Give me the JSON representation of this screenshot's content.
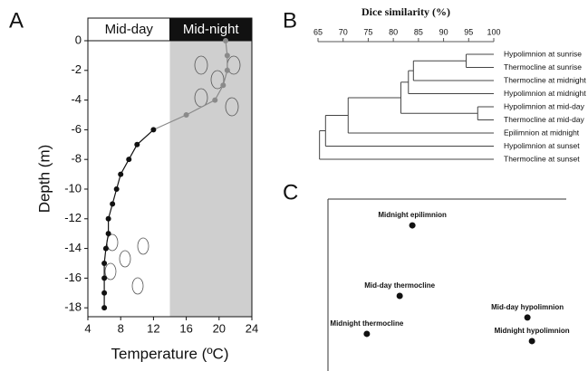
{
  "chart_data": [
    {
      "type": "line",
      "panel": "A",
      "header": [
        "Mid-day",
        "Mid-night"
      ],
      "shade_from": 14,
      "shade_color": "#cfcfcf",
      "xlabel": "Temperature (ºC)",
      "ylabel": "Depth (m)",
      "xlim": [
        4,
        24
      ],
      "xticks": [
        4,
        8,
        12,
        16,
        20,
        24
      ],
      "ylim": [
        -18.6,
        0
      ],
      "yticks": [
        0,
        -2,
        -4,
        -6,
        -8,
        -10,
        -12,
        -14,
        -16,
        -18
      ],
      "series": [
        {
          "color": "#111111",
          "x": [
            6,
            6,
            6,
            6,
            6.2,
            6.5,
            6.5,
            7,
            7.5,
            8,
            9,
            10,
            12
          ],
          "values": [
            -18,
            -17,
            -16,
            -15,
            -14,
            -13,
            -12,
            -11,
            -10,
            -9,
            -8,
            -7,
            -6
          ]
        },
        {
          "color": "#8a8a8a",
          "x": [
            16,
            19.5,
            20.5,
            21,
            21,
            20.8
          ],
          "values": [
            -5,
            -4,
            -3,
            -2,
            -1,
            0
          ]
        }
      ]
    },
    {
      "type": "dendrogram",
      "panel": "B",
      "xlabel": "Dice similarity (%)",
      "xlim": [
        65,
        100
      ],
      "xticks": [
        65,
        70,
        75,
        80,
        85,
        90,
        95,
        100
      ],
      "leaves": [
        "Hypolimnion at sunrise",
        "Thermocline at sunrise",
        "Thermocline at midnight",
        "Hypolimnion at midnight",
        "Hypolimnion at mid-day",
        "Thermocline at mid-day",
        "Epilimnion at midnight",
        "Hypolimnion at sunset",
        "Thermocline at sunset"
      ],
      "merges": [
        {
          "nodes": [
            0,
            1
          ],
          "similarity": 94.5
        },
        {
          "nodes": [
            9,
            2
          ],
          "similarity": 84
        },
        {
          "nodes": [
            10,
            3
          ],
          "similarity": 83
        },
        {
          "nodes": [
            4,
            5
          ],
          "similarity": 96.8
        },
        {
          "nodes": [
            11,
            12
          ],
          "similarity": 81.5
        },
        {
          "nodes": [
            13,
            6
          ],
          "similarity": 71
        },
        {
          "nodes": [
            14,
            7
          ],
          "similarity": 66.5
        },
        {
          "nodes": [
            15,
            8
          ],
          "similarity": 65.3
        }
      ]
    },
    {
      "type": "scatter",
      "panel": "C",
      "color": "#111111",
      "xlim": [
        0,
        100
      ],
      "ylim": [
        0,
        100
      ],
      "labels": [
        "Midnight epilimnion",
        "Mid-day thermocline",
        "Midnight thermocline",
        "Mid-day hypolimnion",
        "Midnight hypolimnion"
      ],
      "x": [
        35.4,
        30.1,
        16.3,
        83.7,
        85.6
      ],
      "values": [
        84.7,
        43.7,
        21.6,
        31.1,
        17.4
      ]
    }
  ]
}
